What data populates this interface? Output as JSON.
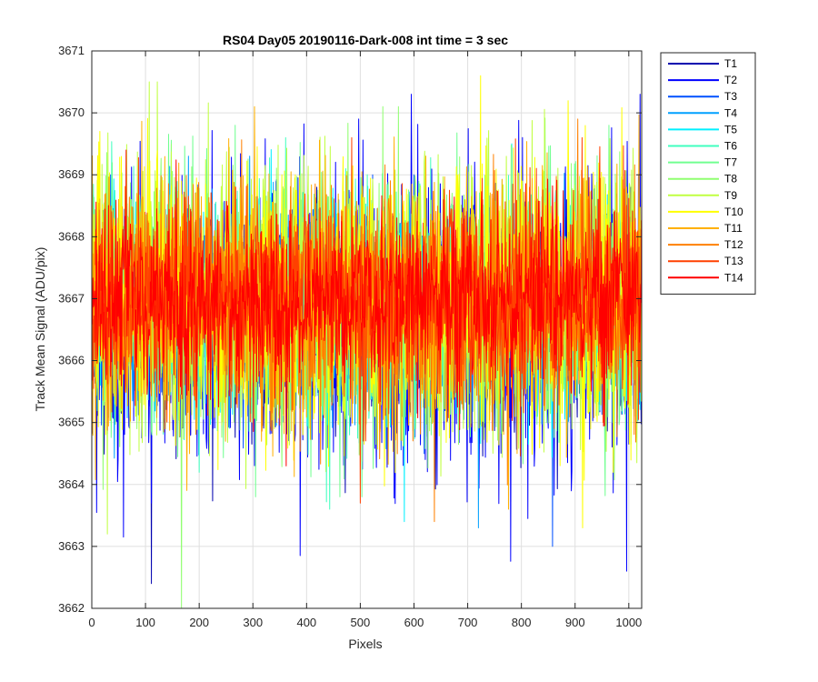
{
  "chart_data": {
    "type": "line",
    "title": "RS04 Day05 20190116-Dark-008 int time = 3 sec",
    "xlabel": "Pixels",
    "ylabel": "Track Mean Signal (ADU/pix)",
    "xlim": [
      0,
      1024
    ],
    "ylim": [
      3662,
      3671
    ],
    "xticks": [
      0,
      100,
      200,
      300,
      400,
      500,
      600,
      700,
      800,
      900,
      1000
    ],
    "yticks": [
      3662,
      3663,
      3664,
      3665,
      3666,
      3667,
      3668,
      3669,
      3670,
      3671
    ],
    "grid": true,
    "legend_position": "outside-top-right",
    "x_start": 1,
    "x_end": 1024,
    "series": [
      {
        "name": "T1",
        "color": "#0000AF",
        "mean": 3666.5,
        "min": 3662.4,
        "max": 3668.8
      },
      {
        "name": "T2",
        "color": "#0000FF",
        "mean": 3666.6,
        "min": 3662.6,
        "max": 3670.3
      },
      {
        "name": "T3",
        "color": "#0050FF",
        "mean": 3666.7,
        "min": 3663.0,
        "max": 3669.0
      },
      {
        "name": "T4",
        "color": "#00A0FF",
        "mean": 3666.8,
        "min": 3663.3,
        "max": 3669.3
      },
      {
        "name": "T5",
        "color": "#00F0FF",
        "mean": 3666.8,
        "min": 3663.4,
        "max": 3669.5
      },
      {
        "name": "T6",
        "color": "#40FFBF",
        "mean": 3666.9,
        "min": 3663.6,
        "max": 3669.6
      },
      {
        "name": "T7",
        "color": "#70FF90",
        "mean": 3666.9,
        "min": 3663.8,
        "max": 3669.8
      },
      {
        "name": "T8",
        "color": "#90FF70",
        "mean": 3666.9,
        "min": 3662.0,
        "max": 3670.1
      },
      {
        "name": "T9",
        "color": "#C0FF40",
        "mean": 3667.0,
        "min": 3663.2,
        "max": 3670.5
      },
      {
        "name": "T10",
        "color": "#FFFF00",
        "mean": 3667.0,
        "min": 3663.3,
        "max": 3670.6
      },
      {
        "name": "T11",
        "color": "#FFB000",
        "mean": 3667.0,
        "min": 3663.6,
        "max": 3670.1
      },
      {
        "name": "T12",
        "color": "#FF8000",
        "mean": 3667.0,
        "min": 3663.4,
        "max": 3669.9
      },
      {
        "name": "T13",
        "color": "#FF4000",
        "mean": 3667.0,
        "min": 3663.7,
        "max": 3669.6
      },
      {
        "name": "T14",
        "color": "#FF0000",
        "mean": 3667.0,
        "min": 3664.3,
        "max": 3669.4
      }
    ]
  }
}
